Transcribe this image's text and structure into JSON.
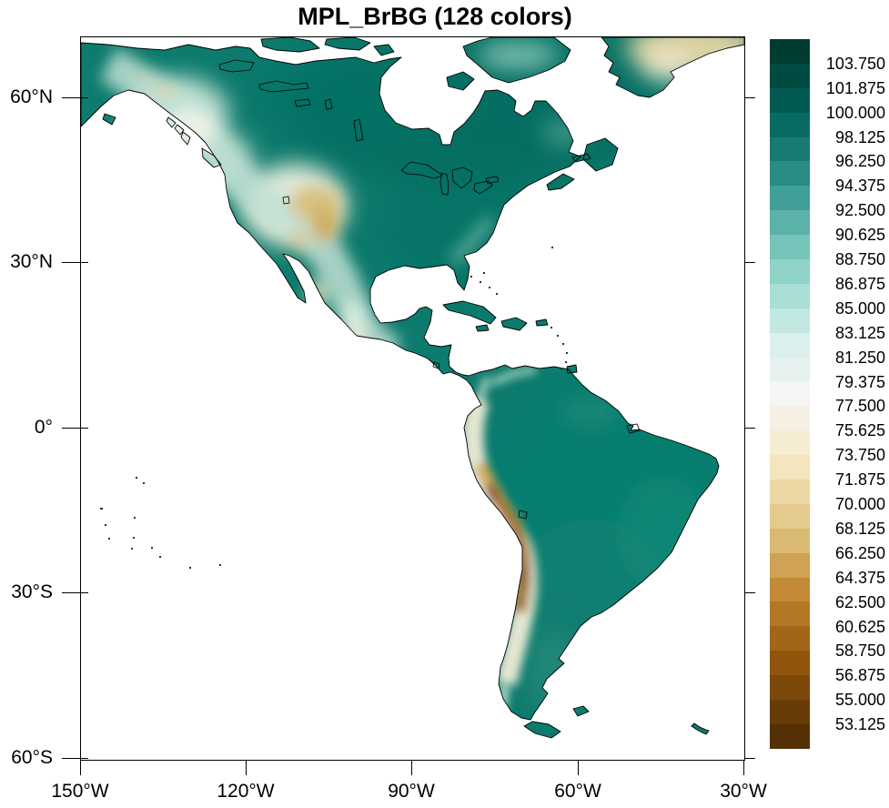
{
  "title": "MPL_BrBG (128 colors)",
  "axes": {
    "y_tick_labels": [
      "60°N",
      "30°N",
      "0°",
      "30°S",
      "60°S"
    ],
    "x_tick_labels": [
      "150°W",
      "120°W",
      "90°W",
      "60°W",
      "30°W"
    ]
  },
  "colorbar": {
    "tick_labels": [
      "103.750",
      "101.875",
      "100.000",
      "98.125",
      "96.250",
      "94.375",
      "92.500",
      "90.625",
      "88.750",
      "86.875",
      "85.000",
      "83.125",
      "81.250",
      "79.375",
      "77.500",
      "75.625",
      "73.750",
      "71.875",
      "70.000",
      "68.125",
      "66.250",
      "64.375",
      "62.500",
      "60.625",
      "58.750",
      "56.875",
      "55.000",
      "53.125"
    ],
    "segment_colors_top_to_bottom": [
      "#003c30",
      "#004b41",
      "#015a51",
      "#076b63",
      "#177b73",
      "#2a8d85",
      "#409f96",
      "#5bb2a8",
      "#75c5ba",
      "#8fd3c9",
      "#a9ded6",
      "#c2e8e2",
      "#dbefec",
      "#e5f1ef",
      "#f5f5f5",
      "#f5f0e3",
      "#f6ecd1",
      "#f4e5be",
      "#ecd8a5",
      "#e4ca8c",
      "#dab972",
      "#cfa255",
      "#c48a38",
      "#b47726",
      "#a26619",
      "#90540d",
      "#7c4809",
      "#683c07",
      "#543005"
    ]
  },
  "map_colors": {
    "lowland_teal": "#0d7b6d",
    "highland_light": "#eef0df",
    "mountain_tan": "#cfae5f",
    "andes_brown": "#8a4e08",
    "greenland_ice_tan": "#e6d5a3",
    "ocean_masked": "#ffffff",
    "coastline": "#000000"
  },
  "chart_data": {
    "type": "heatmap",
    "title": "MPL_BrBG (128 colors)",
    "colormap": "MPL_BrBG",
    "num_colors": 128,
    "region": "North and South America, cylindrical-equidistant map",
    "x_tick_labels": [
      "150°W",
      "120°W",
      "90°W",
      "60°W",
      "30°W"
    ],
    "y_tick_labels": [
      "60°N",
      "30°N",
      "0°",
      "30°S",
      "60°S"
    ],
    "lon_range_deg": [
      -150,
      -30
    ],
    "lat_range_deg": [
      -60,
      71
    ],
    "colorbar_tick_values": [
      103.75,
      101.875,
      100.0,
      98.125,
      96.25,
      94.375,
      92.5,
      90.625,
      88.75,
      86.875,
      85.0,
      83.125,
      81.25,
      79.375,
      77.5,
      75.625,
      73.75,
      71.875,
      70.0,
      68.125,
      66.25,
      64.375,
      62.5,
      60.625,
      58.75,
      56.875,
      55.0,
      53.125
    ],
    "level_spacing": 1.875,
    "legend_position": "right vertical labelbar, 29 boxes, labels at interior box boundaries",
    "grid": "off",
    "value_field_summary": [
      {
        "feature": "lowland plains (Amazon, eastern North America, Canadian Shield)",
        "approx_value": "94-100",
        "appearance": "dark teal"
      },
      {
        "feature": "Rocky Mountains / Great Basin / Colorado Plateau",
        "approx_value": "70-80",
        "appearance": "cream to tan patches"
      },
      {
        "feature": "Andes Altiplano (Peru/Bolivia/Chile)",
        "approx_value": "55-68",
        "appearance": "brown ridge along west coast of South America"
      },
      {
        "feature": "Greenland ice sheet interior",
        "approx_value": "70-78",
        "appearance": "tan/cream with teal coast"
      },
      {
        "feature": "oceans and large bays",
        "approx_value": "masked",
        "appearance": "white"
      }
    ]
  }
}
